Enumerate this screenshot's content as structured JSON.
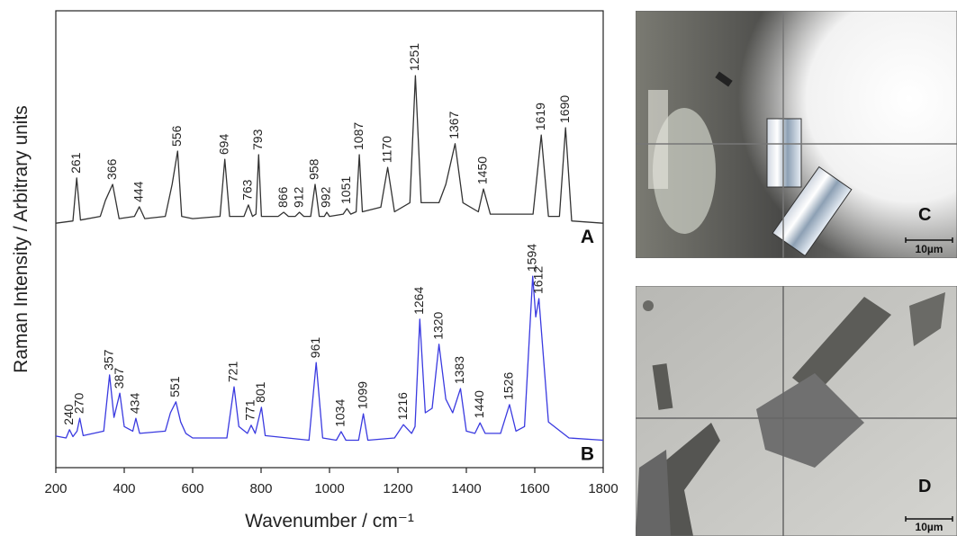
{
  "chart_data": {
    "type": "line",
    "xlabel": "Wavenumber / cm⁻¹",
    "ylabel": "Raman Intensity / Arbitrary units",
    "xlim": [
      200,
      1800
    ],
    "xticks": [
      200,
      400,
      600,
      800,
      1000,
      1200,
      1400,
      1600,
      1800
    ],
    "ylim": [
      0,
      100
    ],
    "series": [
      {
        "name": "A",
        "color": "#333333",
        "x": [
          200,
          250,
          261,
          272,
          330,
          345,
          366,
          385,
          430,
          444,
          460,
          520,
          540,
          556,
          568,
          600,
          680,
          694,
          708,
          750,
          763,
          775,
          785,
          793,
          801,
          850,
          866,
          880,
          900,
          912,
          925,
          945,
          958,
          970,
          985,
          992,
          1000,
          1040,
          1051,
          1062,
          1078,
          1087,
          1096,
          1150,
          1170,
          1190,
          1235,
          1251,
          1268,
          1320,
          1340,
          1367,
          1390,
          1435,
          1450,
          1470,
          1595,
          1619,
          1640,
          1672,
          1690,
          1708,
          1800
        ],
        "values": [
          53.5,
          54,
          63.4,
          54.2,
          55,
          58.5,
          62,
          54.5,
          55,
          57.1,
          54.5,
          55,
          62,
          69.3,
          55,
          54.5,
          55,
          67.5,
          55,
          55,
          57.5,
          55,
          55.5,
          68.5,
          55,
          55,
          55.9,
          55,
          55,
          55.9,
          55,
          55,
          62,
          55,
          55,
          55.9,
          55,
          55.5,
          56.7,
          55.5,
          56,
          68.5,
          56,
          57,
          65.7,
          56,
          58,
          85.8,
          58,
          58,
          62,
          70.9,
          58,
          56,
          61,
          55.5,
          55.5,
          72.8,
          55,
          55,
          74.4,
          54,
          53.5
        ]
      },
      {
        "name": "B",
        "color": "#3a3ae0",
        "x": [
          200,
          230,
          240,
          250,
          262,
          270,
          280,
          340,
          357,
          370,
          387,
          400,
          425,
          434,
          445,
          520,
          535,
          551,
          565,
          580,
          600,
          700,
          721,
          735,
          760,
          771,
          783,
          801,
          812,
          940,
          961,
          980,
          1020,
          1034,
          1048,
          1085,
          1099,
          1112,
          1190,
          1216,
          1240,
          1250,
          1264,
          1280,
          1300,
          1320,
          1340,
          1360,
          1383,
          1400,
          1425,
          1440,
          1455,
          1500,
          1526,
          1545,
          1570,
          1594,
          1603,
          1612,
          1640,
          1700,
          1800
        ],
        "values": [
          6.9,
          6.5,
          8.3,
          6.8,
          8,
          10.8,
          7,
          8,
          20.3,
          11,
          16.3,
          9,
          8,
          10.8,
          7.5,
          8,
          12,
          14.4,
          10,
          7.5,
          6.5,
          6.5,
          17.7,
          9,
          7.5,
          9.3,
          7.5,
          13.2,
          7,
          6,
          23,
          6.5,
          6,
          7.9,
          6,
          6,
          11.8,
          6,
          6.5,
          9.4,
          7.5,
          9,
          32.5,
          12,
          13,
          27,
          15,
          12,
          17.3,
          8,
          7.5,
          9.8,
          7.5,
          7.5,
          13.8,
          8,
          9,
          41.9,
          33,
          37,
          10,
          6.5,
          6
        ]
      }
    ]
  },
  "panels": [
    {
      "label": "C",
      "scale": "10µm"
    },
    {
      "label": "D",
      "scale": "10µm"
    }
  ]
}
